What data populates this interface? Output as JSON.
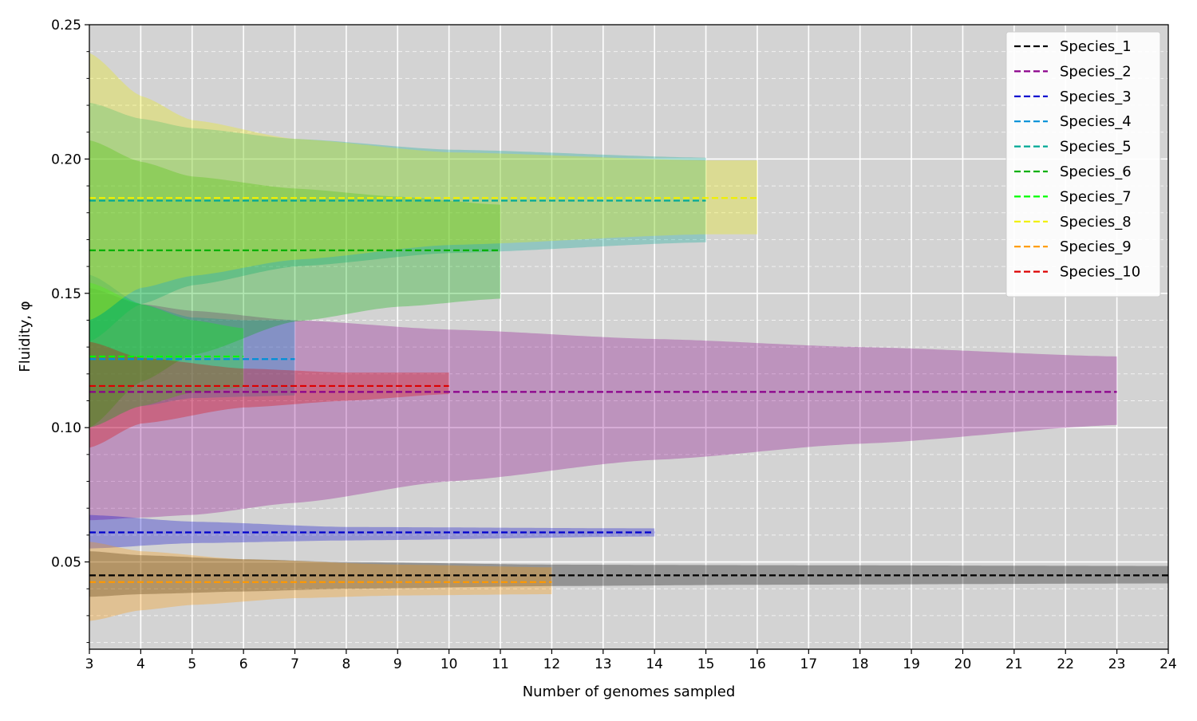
{
  "chart_data": {
    "type": "line",
    "xlabel": "Number of genomes sampled",
    "ylabel": "Fluidity, φ",
    "xlim": [
      3,
      24
    ],
    "ylim": [
      0.0175,
      0.25
    ],
    "xticks": [
      "3",
      "4",
      "5",
      "6",
      "7",
      "8",
      "9",
      "10",
      "11",
      "12",
      "13",
      "14",
      "15",
      "16",
      "17",
      "18",
      "19",
      "20",
      "21",
      "22",
      "23",
      "24"
    ],
    "yticks": [
      "0.05",
      "0.10",
      "0.15",
      "0.20",
      "0.25"
    ],
    "grid": true,
    "background": "#d3d3d3",
    "legend_position": "upper right",
    "series": [
      {
        "name": "Species_1",
        "color": "#000000",
        "x_end": 24,
        "mean": 0.045,
        "upper": [
          [
            3,
            0.054
          ],
          [
            4,
            0.0525
          ],
          [
            6,
            0.051
          ],
          [
            8,
            0.05
          ],
          [
            12,
            0.049
          ],
          [
            16,
            0.0488
          ],
          [
            24,
            0.0485
          ]
        ],
        "lower": [
          [
            3,
            0.037
          ],
          [
            4,
            0.038
          ],
          [
            6,
            0.039
          ],
          [
            8,
            0.04
          ],
          [
            12,
            0.041
          ],
          [
            16,
            0.0415
          ],
          [
            24,
            0.042
          ]
        ]
      },
      {
        "name": "Species_2",
        "color": "#8b008b",
        "x_end": 23,
        "mean": 0.1133,
        "upper": [
          [
            3,
            0.152
          ],
          [
            4,
            0.146
          ],
          [
            5,
            0.1435
          ],
          [
            7,
            0.14
          ],
          [
            10,
            0.1365
          ],
          [
            14,
            0.133
          ],
          [
            18,
            0.13
          ],
          [
            23,
            0.1265
          ]
        ],
        "lower": [
          [
            3,
            0.0655
          ],
          [
            4,
            0.0665
          ],
          [
            5,
            0.0675
          ],
          [
            7,
            0.072
          ],
          [
            10,
            0.08
          ],
          [
            14,
            0.088
          ],
          [
            18,
            0.094
          ],
          [
            23,
            0.101
          ]
        ]
      },
      {
        "name": "Species_3",
        "color": "#0000cd",
        "x_end": 14,
        "mean": 0.061,
        "upper": [
          [
            3,
            0.0675
          ],
          [
            5,
            0.065
          ],
          [
            8,
            0.063
          ],
          [
            14,
            0.0625
          ]
        ],
        "lower": [
          [
            3,
            0.055
          ],
          [
            5,
            0.057
          ],
          [
            8,
            0.058
          ],
          [
            14,
            0.0595
          ]
        ]
      },
      {
        "name": "Species_4",
        "color": "#0090d8",
        "x_end": 7,
        "mean": 0.1255,
        "upper": [
          [
            3,
            0.157
          ],
          [
            4,
            0.146
          ],
          [
            5,
            0.141
          ],
          [
            6,
            0.14
          ],
          [
            7,
            0.14
          ]
        ],
        "lower": [
          [
            3,
            0.1
          ],
          [
            4,
            0.108
          ],
          [
            5,
            0.111
          ],
          [
            6,
            0.1115
          ],
          [
            7,
            0.112
          ]
        ]
      },
      {
        "name": "Species_5",
        "color": "#00a895",
        "x_end": 15,
        "mean": 0.1845,
        "upper": [
          [
            3,
            0.221
          ],
          [
            4,
            0.215
          ],
          [
            5,
            0.2115
          ],
          [
            7,
            0.2075
          ],
          [
            10,
            0.2035
          ],
          [
            15,
            0.2005
          ]
        ],
        "lower": [
          [
            3,
            0.132
          ],
          [
            4,
            0.146
          ],
          [
            5,
            0.153
          ],
          [
            7,
            0.16
          ],
          [
            10,
            0.165
          ],
          [
            15,
            0.169
          ]
        ]
      },
      {
        "name": "Species_6",
        "color": "#00b000",
        "x_end": 11,
        "mean": 0.166,
        "upper": [
          [
            3,
            0.207
          ],
          [
            4,
            0.199
          ],
          [
            5,
            0.1935
          ],
          [
            7,
            0.189
          ],
          [
            9,
            0.186
          ],
          [
            11,
            0.183
          ]
        ],
        "lower": [
          [
            3,
            0.1
          ],
          [
            4,
            0.117
          ],
          [
            5,
            0.127
          ],
          [
            7,
            0.1395
          ],
          [
            9,
            0.145
          ],
          [
            11,
            0.148
          ]
        ]
      },
      {
        "name": "Species_7",
        "color": "#00ff00",
        "x_end": 6,
        "mean": 0.1265,
        "upper": [
          [
            3,
            0.154
          ],
          [
            4,
            0.146
          ],
          [
            5,
            0.14
          ],
          [
            6,
            0.137
          ]
        ],
        "lower": [
          [
            3,
            0.1
          ],
          [
            4,
            0.108
          ],
          [
            5,
            0.113
          ],
          [
            6,
            0.115
          ]
        ]
      },
      {
        "name": "Species_8",
        "color": "#f0f000",
        "x_end": 16,
        "mean": 0.1855,
        "upper": [
          [
            3,
            0.2395
          ],
          [
            4,
            0.2235
          ],
          [
            5,
            0.2145
          ],
          [
            7,
            0.2075
          ],
          [
            10,
            0.2025
          ],
          [
            15,
            0.1995
          ],
          [
            16,
            0.1995
          ]
        ],
        "lower": [
          [
            3,
            0.14
          ],
          [
            4,
            0.152
          ],
          [
            5,
            0.1565
          ],
          [
            7,
            0.1625
          ],
          [
            10,
            0.168
          ],
          [
            15,
            0.172
          ],
          [
            16,
            0.172
          ]
        ]
      },
      {
        "name": "Species_9",
        "color": "#ff9900",
        "x_end": 12,
        "mean": 0.0425,
        "upper": [
          [
            3,
            0.0575
          ],
          [
            4,
            0.054
          ],
          [
            6,
            0.051
          ],
          [
            9,
            0.049
          ],
          [
            12,
            0.048
          ]
        ],
        "lower": [
          [
            3,
            0.028
          ],
          [
            4,
            0.032
          ],
          [
            5,
            0.034
          ],
          [
            7,
            0.0365
          ],
          [
            9,
            0.0375
          ],
          [
            12,
            0.038
          ]
        ]
      },
      {
        "name": "Species_10",
        "color": "#dd0000",
        "x_end": 10,
        "mean": 0.1155,
        "upper": [
          [
            3,
            0.132
          ],
          [
            4,
            0.126
          ],
          [
            6,
            0.122
          ],
          [
            8,
            0.1205
          ],
          [
            10,
            0.1205
          ]
        ],
        "lower": [
          [
            3,
            0.0925
          ],
          [
            4,
            0.1015
          ],
          [
            6,
            0.1075
          ],
          [
            8,
            0.11
          ],
          [
            10,
            0.1125
          ]
        ]
      }
    ]
  }
}
